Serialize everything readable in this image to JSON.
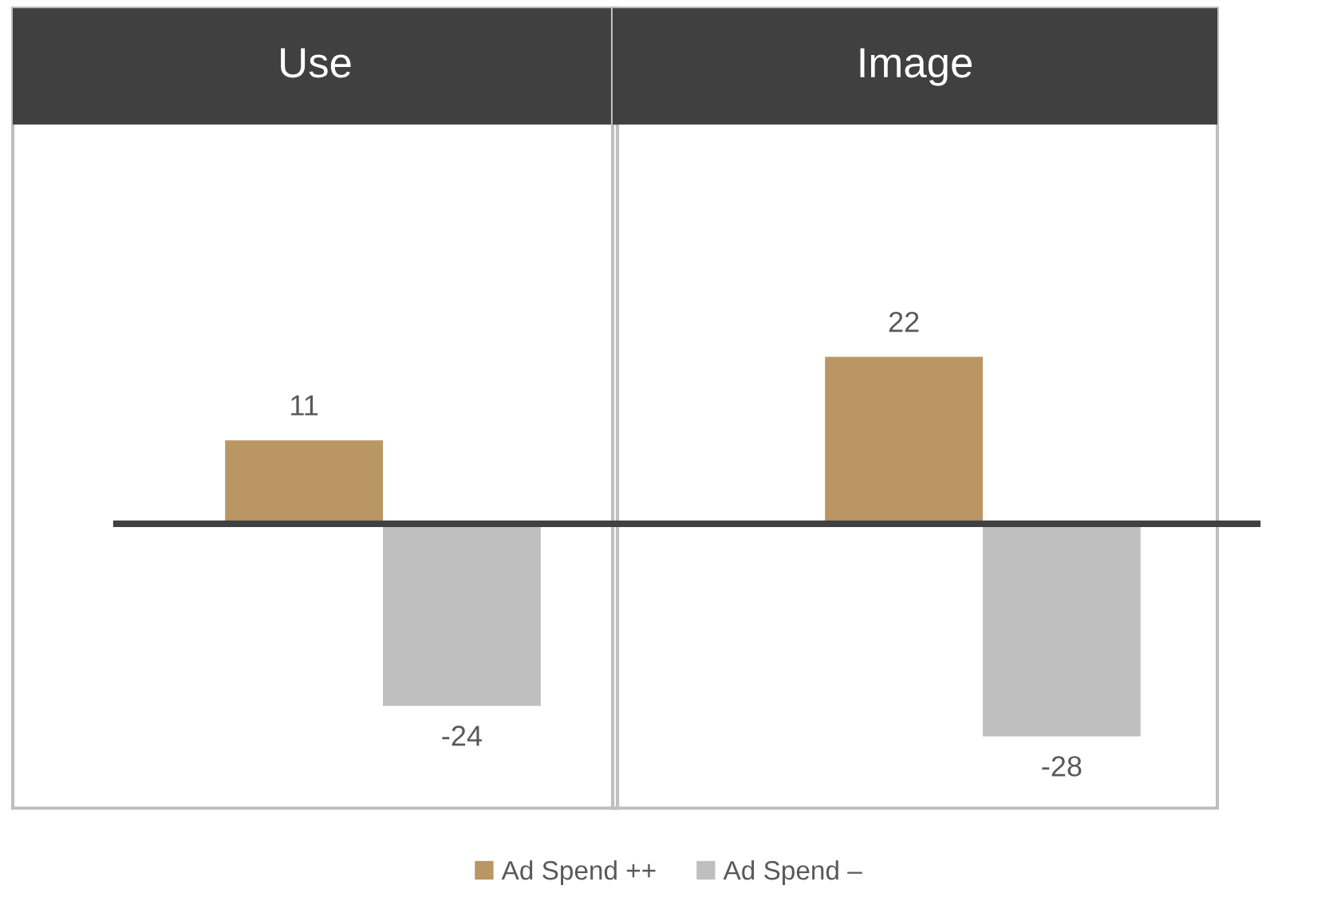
{
  "chart_data": {
    "type": "bar",
    "categories": [
      "Use",
      "Image"
    ],
    "series": [
      {
        "name": "Ad Spend ++",
        "color": "#b99664",
        "values": [
          11,
          22
        ]
      },
      {
        "name": "Ad Spend –",
        "color": "#bfbfbf",
        "values": [
          -24,
          -28
        ]
      }
    ],
    "data_labels": true,
    "legend": "bottom"
  }
}
